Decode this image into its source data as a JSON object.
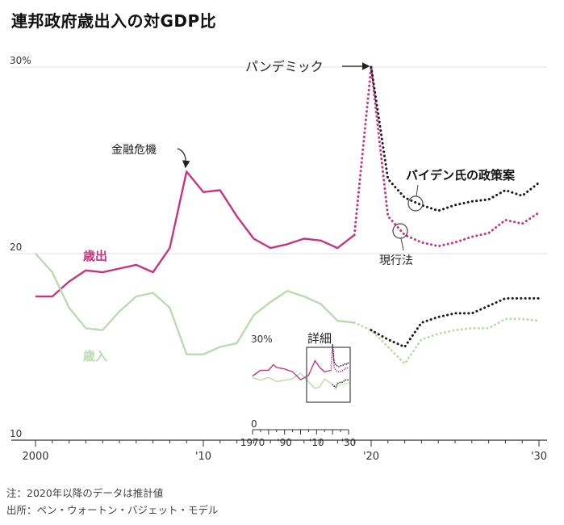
{
  "title": "連邦政府歳出入の対GDP比",
  "notes": [
    "注：2020年以降のデータは推計値",
    "出所：ペン・ウォートン・バジェット・モデル"
  ],
  "colors": {
    "outlays": "#c7357f",
    "revenues": "#b9dcae",
    "biden": "#1a1a1a",
    "grid": "#e2e2e2",
    "axis": "#333333"
  },
  "chart_data": {
    "type": "line",
    "title": "連邦政府歳出入の対GDP比",
    "x_range": [
      2000,
      2030
    ],
    "y_range": [
      10,
      30
    ],
    "y_ticks": [
      {
        "v": 30,
        "label": "30%"
      },
      {
        "v": 20,
        "label": "20"
      },
      {
        "v": 10,
        "label": "10"
      }
    ],
    "x_ticks": [
      {
        "v": 2000,
        "label": "2000"
      },
      {
        "v": 2010,
        "label": "'10"
      },
      {
        "v": 2020,
        "label": "'20"
      },
      {
        "v": 2030,
        "label": "'30"
      }
    ],
    "series": [
      {
        "name": "歳出",
        "key": "outlays_actual",
        "style": "solid",
        "x": [
          2000,
          2001,
          2002,
          2003,
          2004,
          2005,
          2006,
          2007,
          2008,
          2009,
          2010,
          2011,
          2012,
          2013,
          2014,
          2015,
          2016,
          2017,
          2018,
          2019
        ],
        "values": [
          17.7,
          17.7,
          18.5,
          19.1,
          19.0,
          19.2,
          19.4,
          19.0,
          20.3,
          24.4,
          23.3,
          23.4,
          22.0,
          20.8,
          20.3,
          20.5,
          20.8,
          20.7,
          20.3,
          21.0
        ]
      },
      {
        "name": "",
        "key": "outlays_current_law",
        "style": "dotted",
        "x": [
          2019,
          2020,
          2021,
          2022,
          2023,
          2024,
          2025,
          2026,
          2027,
          2028,
          2029,
          2030
        ],
        "values": [
          21.0,
          30.0,
          22.0,
          21.0,
          20.6,
          20.4,
          20.6,
          20.9,
          21.1,
          21.8,
          21.6,
          22.2
        ]
      },
      {
        "name": "",
        "key": "outlays_biden",
        "style": "dotted",
        "x": [
          2020,
          2021,
          2022,
          2023,
          2024,
          2025,
          2026,
          2027,
          2028,
          2029,
          2030
        ],
        "values": [
          30.0,
          24.0,
          23.0,
          22.6,
          22.3,
          22.6,
          22.8,
          22.9,
          23.4,
          23.1,
          23.8
        ]
      },
      {
        "name": "歳入",
        "key": "revenues_actual",
        "style": "solid",
        "x": [
          2000,
          2001,
          2002,
          2003,
          2004,
          2005,
          2006,
          2007,
          2008,
          2009,
          2010,
          2011,
          2012,
          2013,
          2014,
          2015,
          2016,
          2017,
          2018,
          2019
        ],
        "values": [
          20.0,
          19.0,
          17.1,
          16.0,
          15.9,
          16.9,
          17.7,
          17.9,
          17.1,
          14.6,
          14.6,
          15.0,
          15.2,
          16.7,
          17.4,
          18.0,
          17.7,
          17.3,
          16.4,
          16.3
        ],
        "label_color": "#a9d19d"
      },
      {
        "name": "",
        "key": "revenues_current_law",
        "style": "dotted",
        "x": [
          2019,
          2020,
          2021,
          2022,
          2023,
          2024,
          2025,
          2026,
          2027,
          2028,
          2029,
          2030
        ],
        "values": [
          16.3,
          15.9,
          15.0,
          14.1,
          15.4,
          15.7,
          15.9,
          16.0,
          16.0,
          16.5,
          16.5,
          16.4
        ]
      },
      {
        "name": "",
        "key": "revenues_biden",
        "style": "dotted",
        "x": [
          2020,
          2021,
          2022,
          2023,
          2024,
          2025,
          2026,
          2027,
          2028,
          2029,
          2030
        ],
        "values": [
          15.9,
          15.4,
          15.0,
          16.3,
          16.6,
          16.8,
          16.8,
          17.2,
          17.6,
          17.6,
          17.6
        ]
      }
    ],
    "annotations": {
      "pandemic": "パンデミック",
      "crisis": "金融危機",
      "biden_policy": "バイデン氏の政策案",
      "current_law": "現行法",
      "outlays_label": "歳出",
      "revenues_label": "歳入"
    },
    "inset": {
      "label": "詳細",
      "y_ticks": [
        {
          "v": 30,
          "label": "30%"
        },
        {
          "v": 0,
          "label": "0"
        }
      ],
      "x_ticks": [
        {
          "v": 1970,
          "label": "1970"
        },
        {
          "v": 1990,
          "label": "'90"
        },
        {
          "v": 2010,
          "label": "'10"
        },
        {
          "v": 2030,
          "label": "'30"
        }
      ],
      "x_range": [
        1970,
        2030
      ],
      "y_range": [
        0,
        30
      ],
      "outlays": {
        "x": [
          1970,
          1975,
          1980,
          1983,
          1985,
          1990,
          1995,
          2000,
          2005,
          2009,
          2012,
          2015,
          2019
        ],
        "values": [
          19.0,
          21.0,
          21.0,
          23.0,
          22.0,
          21.5,
          20.5,
          17.7,
          19.2,
          24.4,
          22.0,
          20.5,
          21.0
        ]
      },
      "revenues": {
        "x": [
          1970,
          1975,
          1980,
          1985,
          1990,
          1995,
          2000,
          2005,
          2009,
          2012,
          2015,
          2019
        ],
        "values": [
          18.5,
          17.5,
          18.5,
          17.0,
          17.5,
          18.0,
          20.0,
          16.9,
          14.6,
          15.2,
          18.0,
          16.3
        ]
      }
    }
  }
}
